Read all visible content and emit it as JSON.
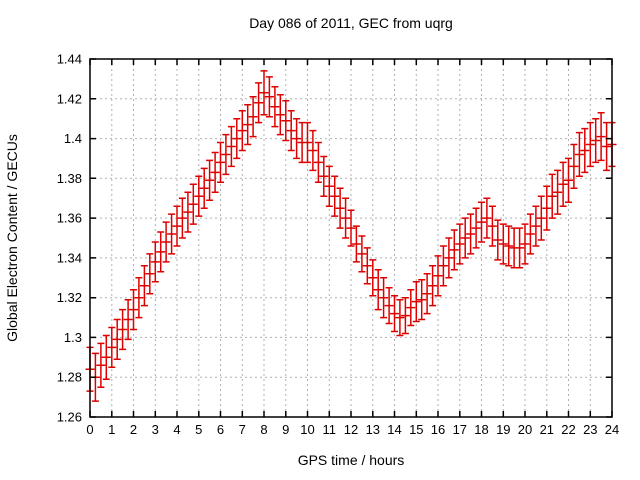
{
  "chart_data": {
    "type": "scatter",
    "style": "yerrorbars",
    "title": "Day 086 of 2011, GEC from uqrg",
    "xlabel": "GPS time / hours",
    "ylabel": "Global Electron Content / GECUs",
    "xlim": [
      0,
      24
    ],
    "ylim": [
      1.26,
      1.44
    ],
    "xticks": [
      0,
      1,
      2,
      3,
      4,
      5,
      6,
      7,
      8,
      9,
      10,
      11,
      12,
      13,
      14,
      15,
      16,
      17,
      18,
      19,
      20,
      21,
      22,
      23,
      24
    ],
    "yticks": [
      1.26,
      1.28,
      1.3,
      1.32,
      1.34,
      1.36,
      1.38,
      1.4,
      1.42,
      1.44
    ],
    "ytick_labels": [
      "1.26",
      "1.28",
      "1.3",
      "1.32",
      "1.34",
      "1.36",
      "1.38",
      "1.4",
      "1.42",
      "1.44"
    ],
    "grid": true,
    "legend": "none",
    "series_color": "#dd0000",
    "grid_color": "#b0b0b0",
    "axis_color": "#000000",
    "x": [
      0,
      0.25,
      0.5,
      0.75,
      1,
      1.25,
      1.5,
      1.75,
      2,
      2.25,
      2.5,
      2.75,
      3,
      3.25,
      3.5,
      3.75,
      4,
      4.25,
      4.5,
      4.75,
      5,
      5.25,
      5.5,
      5.75,
      6,
      6.25,
      6.5,
      6.75,
      7,
      7.25,
      7.5,
      7.75,
      8,
      8.25,
      8.5,
      8.75,
      9,
      9.25,
      9.5,
      9.75,
      10,
      10.25,
      10.5,
      10.75,
      11,
      11.25,
      11.5,
      11.75,
      12,
      12.25,
      12.5,
      12.75,
      13,
      13.25,
      13.5,
      13.75,
      14,
      14.25,
      14.5,
      14.75,
      15,
      15.25,
      15.5,
      15.75,
      16,
      16.25,
      16.5,
      16.75,
      17,
      17.25,
      17.5,
      17.75,
      18,
      18.25,
      18.5,
      18.75,
      19,
      19.25,
      19.5,
      19.75,
      20,
      20.25,
      20.5,
      20.75,
      21,
      21.25,
      21.5,
      21.75,
      22,
      22.25,
      22.5,
      22.75,
      23,
      23.25,
      23.5,
      23.75,
      24
    ],
    "y": [
      1.284,
      1.28,
      1.286,
      1.29,
      1.295,
      1.299,
      1.304,
      1.309,
      1.314,
      1.32,
      1.326,
      1.332,
      1.338,
      1.343,
      1.348,
      1.352,
      1.356,
      1.36,
      1.363,
      1.367,
      1.371,
      1.375,
      1.379,
      1.383,
      1.388,
      1.392,
      1.396,
      1.4,
      1.404,
      1.407,
      1.411,
      1.418,
      1.423,
      1.421,
      1.416,
      1.412,
      1.409,
      1.404,
      1.4,
      1.398,
      1.398,
      1.394,
      1.388,
      1.381,
      1.376,
      1.371,
      1.365,
      1.36,
      1.355,
      1.347,
      1.342,
      1.336,
      1.33,
      1.324,
      1.32,
      1.316,
      1.312,
      1.31,
      1.311,
      1.315,
      1.318,
      1.319,
      1.322,
      1.326,
      1.331,
      1.336,
      1.34,
      1.344,
      1.347,
      1.35,
      1.352,
      1.355,
      1.358,
      1.36,
      1.356,
      1.349,
      1.347,
      1.346,
      1.345,
      1.345,
      1.347,
      1.352,
      1.356,
      1.36,
      1.365,
      1.371,
      1.373,
      1.377,
      1.379,
      1.386,
      1.392,
      1.394,
      1.397,
      1.399,
      1.401,
      1.396,
      1.397
    ],
    "y_err": [
      0.011,
      0.012,
      0.011,
      0.011,
      0.01,
      0.01,
      0.01,
      0.01,
      0.01,
      0.01,
      0.01,
      0.01,
      0.01,
      0.01,
      0.01,
      0.01,
      0.01,
      0.01,
      0.01,
      0.01,
      0.01,
      0.01,
      0.01,
      0.01,
      0.01,
      0.01,
      0.01,
      0.01,
      0.01,
      0.01,
      0.01,
      0.01,
      0.011,
      0.01,
      0.01,
      0.01,
      0.01,
      0.01,
      0.01,
      0.01,
      0.01,
      0.01,
      0.01,
      0.01,
      0.01,
      0.01,
      0.01,
      0.01,
      0.009,
      0.009,
      0.009,
      0.009,
      0.009,
      0.01,
      0.01,
      0.009,
      0.009,
      0.009,
      0.009,
      0.009,
      0.01,
      0.01,
      0.01,
      0.01,
      0.01,
      0.01,
      0.01,
      0.01,
      0.01,
      0.01,
      0.01,
      0.01,
      0.01,
      0.01,
      0.01,
      0.01,
      0.01,
      0.01,
      0.01,
      0.01,
      0.01,
      0.01,
      0.01,
      0.011,
      0.011,
      0.011,
      0.011,
      0.011,
      0.011,
      0.011,
      0.011,
      0.011,
      0.011,
      0.011,
      0.012,
      0.012,
      0.011
    ]
  }
}
